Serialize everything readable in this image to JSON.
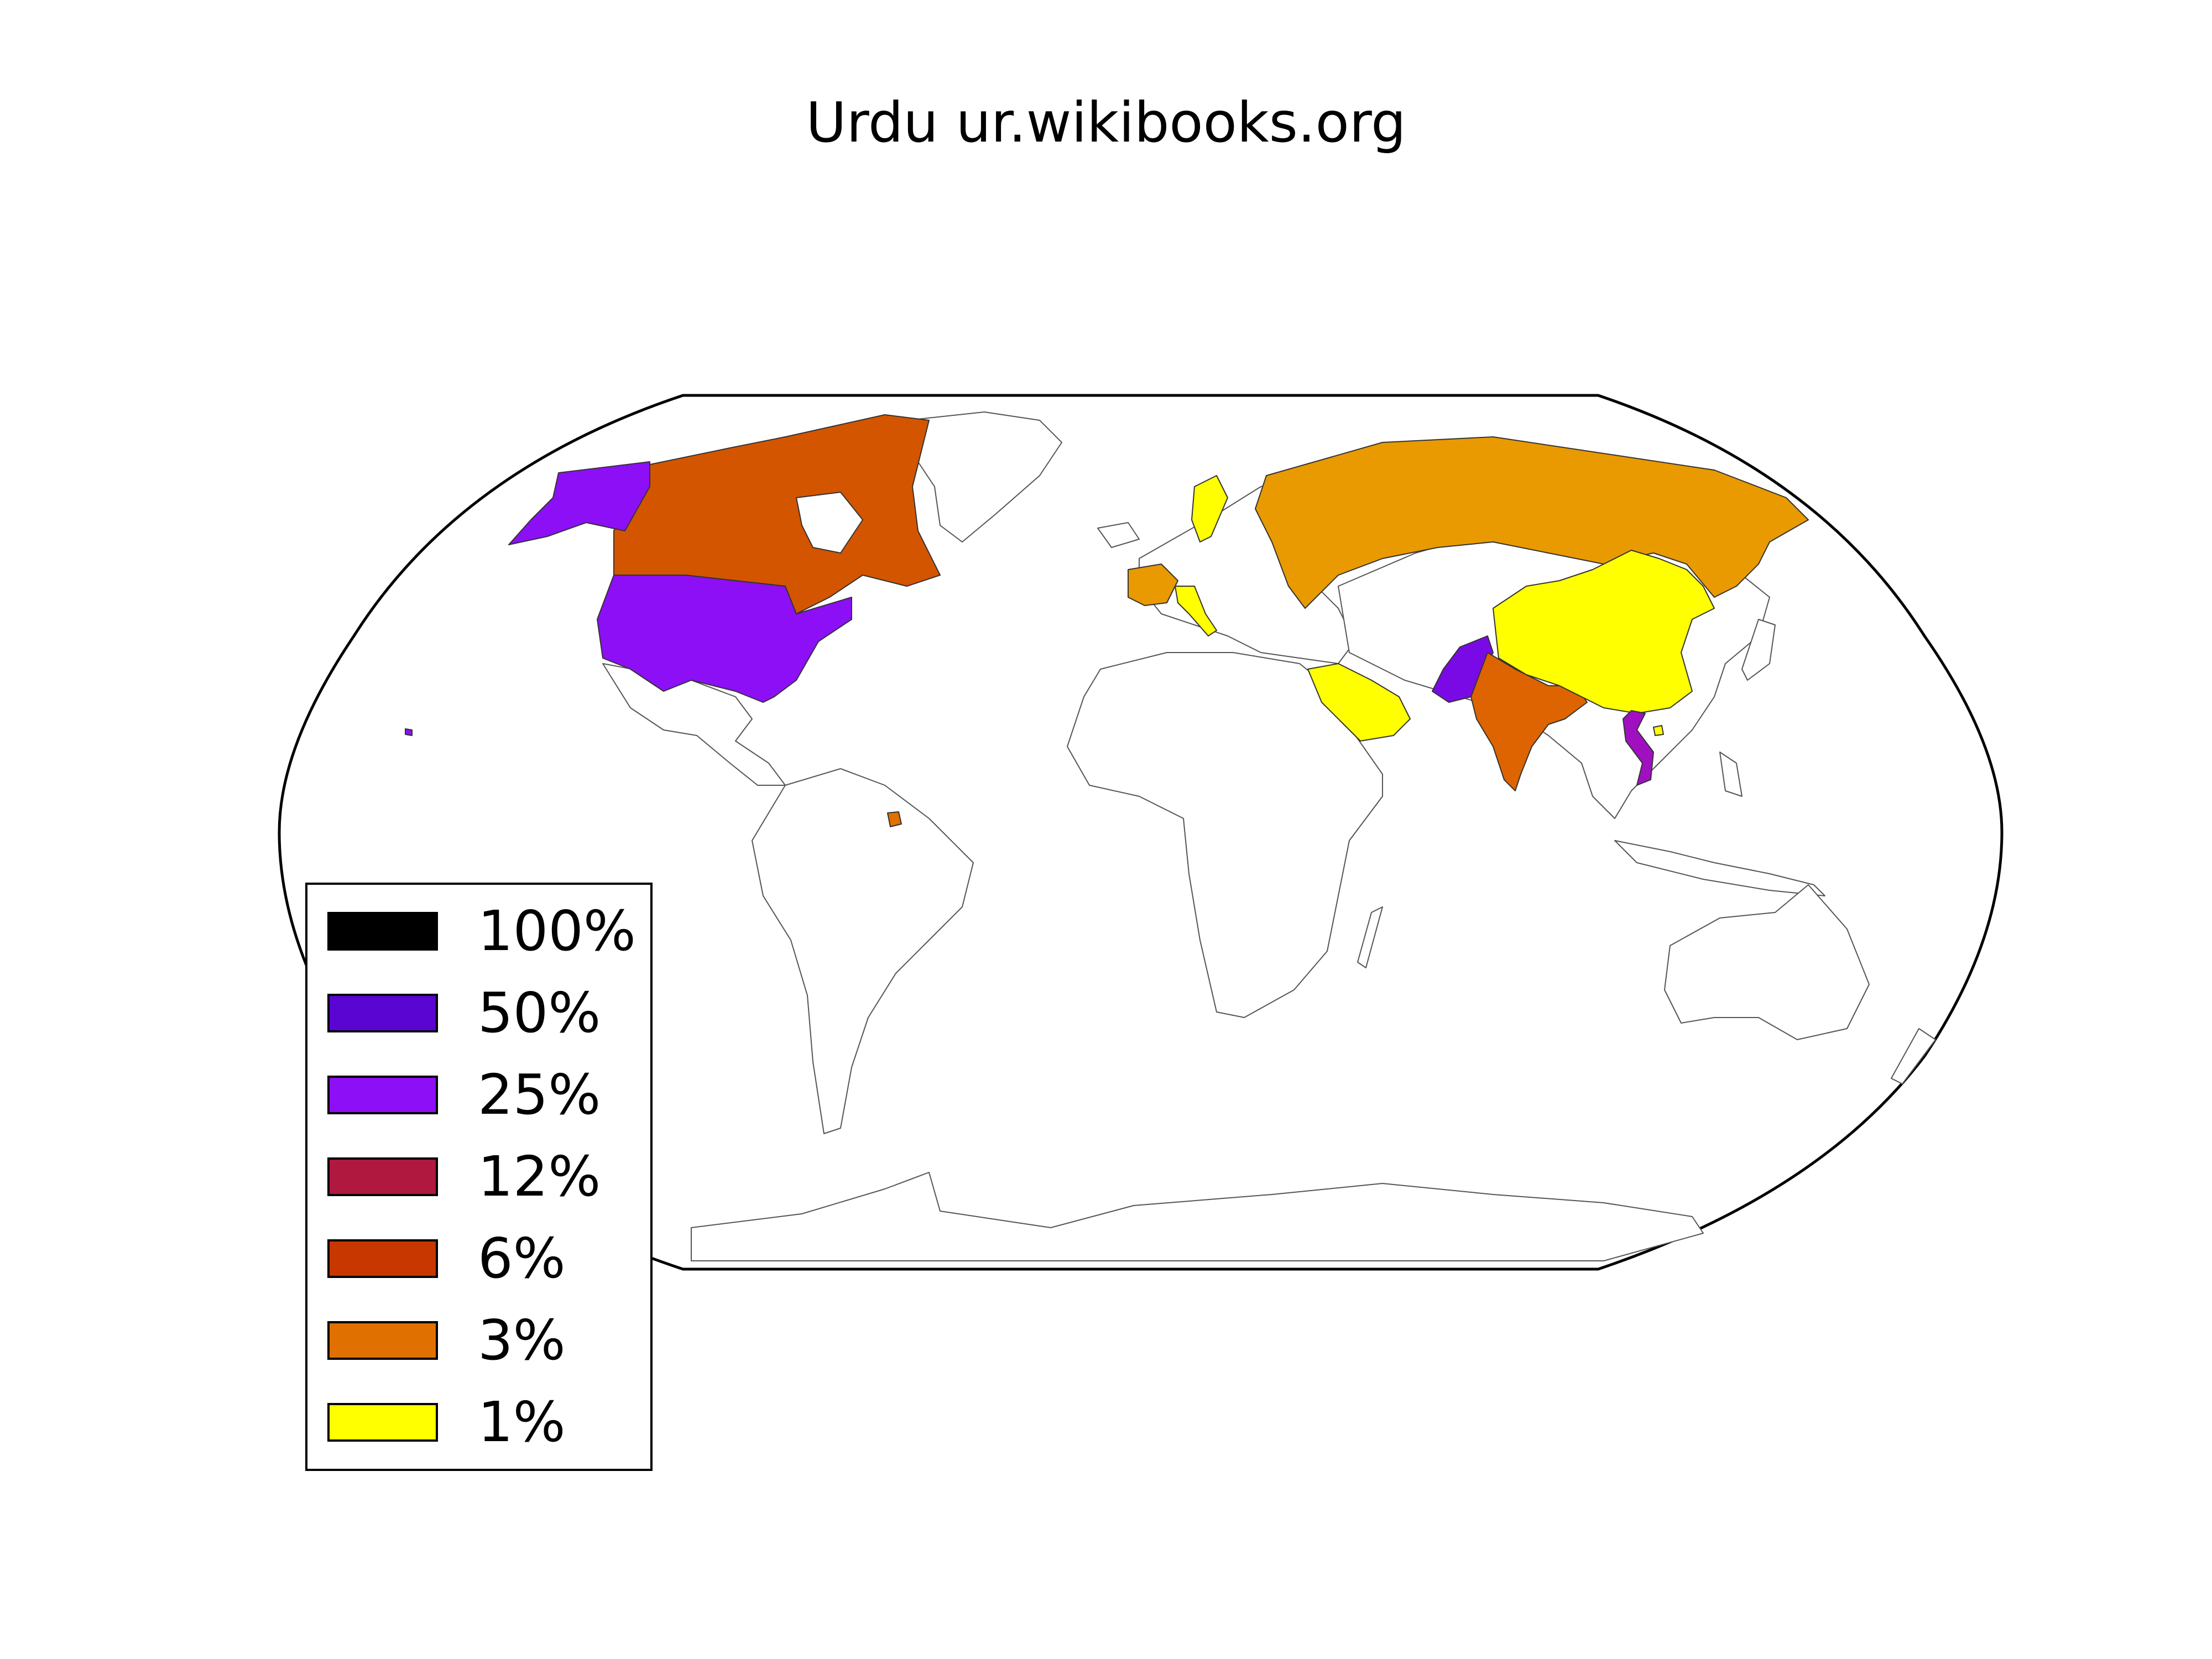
{
  "title": "Urdu ur.wikibooks.org",
  "colors": {
    "scale_100": "#000000",
    "scale_50": "#5a05d2",
    "scale_25": "#8c0ff5",
    "scale_12": "#b01840",
    "scale_6": "#c83700",
    "scale_3": "#e07000",
    "scale_1": "#ffff00",
    "usa": "#8c0ff5",
    "alaska": "#8c0ff5",
    "canada": "#d45500",
    "russia": "#e99a00",
    "france": "#e99a00",
    "china": "#ffff00",
    "india": "#dd6400",
    "pakistan": "#7a0ae5",
    "vietnam": "#a010c0",
    "saudi_arabia": "#ffff00",
    "sweden": "#ffff00",
    "italy": "#ffff00",
    "french_guiana": "#e07000"
  },
  "legend": [
    {
      "label": "100%",
      "color": "#000000"
    },
    {
      "label": "50%",
      "color": "#5a05d2"
    },
    {
      "label": "25%",
      "color": "#8c0ff5"
    },
    {
      "label": "12%",
      "color": "#b01840"
    },
    {
      "label": "6%",
      "color": "#c83700"
    },
    {
      "label": "3%",
      "color": "#e07000"
    },
    {
      "label": "1%",
      "color": "#ffff00"
    }
  ]
}
